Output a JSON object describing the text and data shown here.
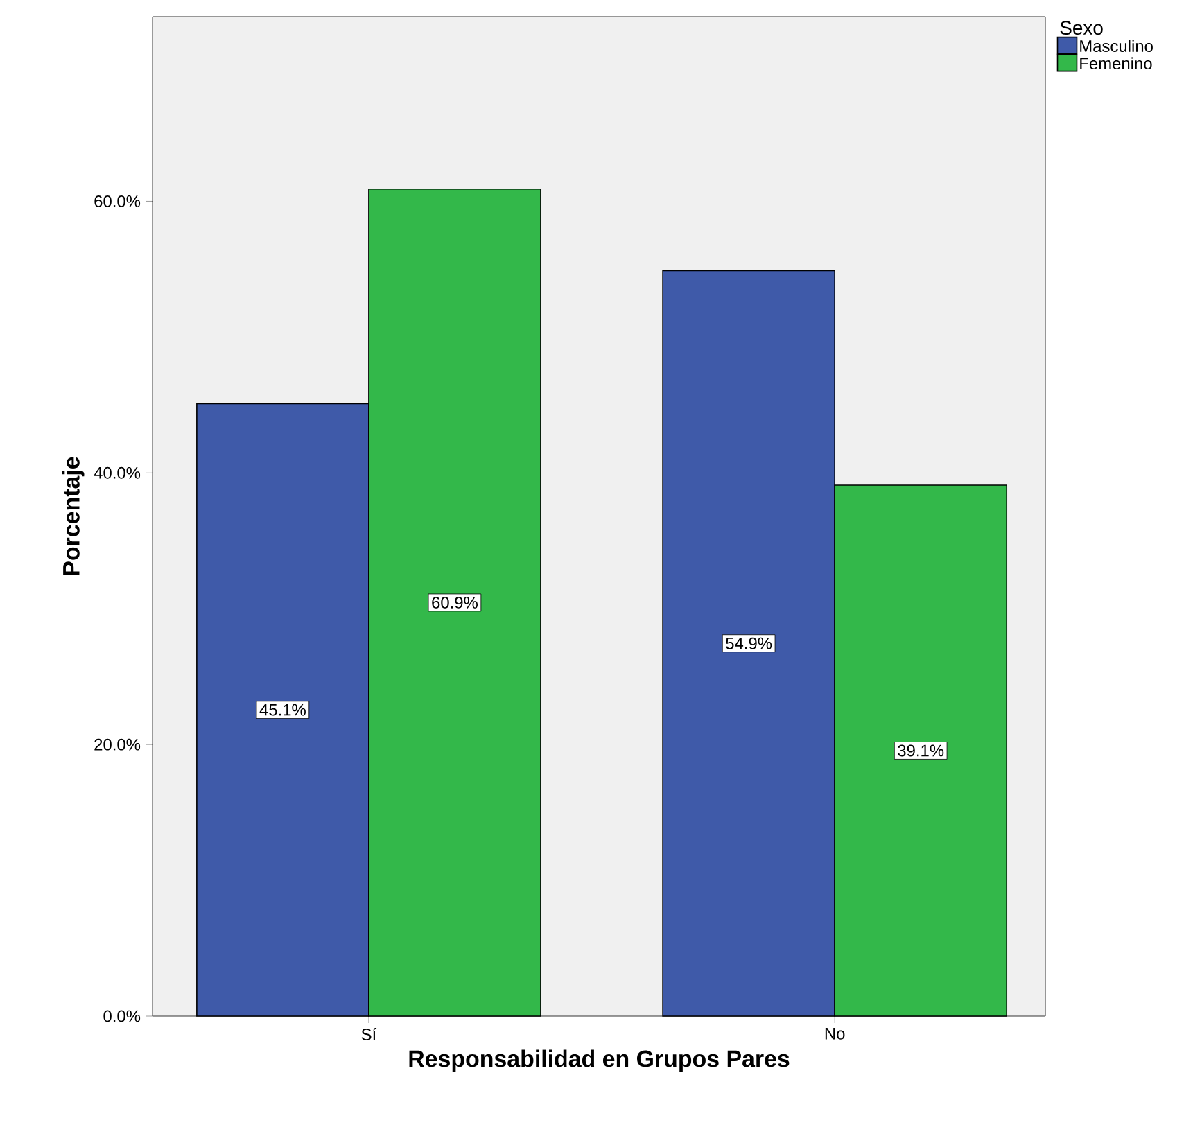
{
  "chart_data": {
    "type": "bar",
    "xlabel": "Responsabilidad en Grupos Pares",
    "ylabel": "Porcentaje",
    "legend_title": "Sexo",
    "categories": [
      "Sí",
      "No"
    ],
    "series": [
      {
        "name": "Masculino",
        "color": "#3f5aa9",
        "values": [
          45.1,
          54.9
        ],
        "value_labels": [
          "45.1%",
          "54.9%"
        ]
      },
      {
        "name": "Femenino",
        "color": "#33b84a",
        "values": [
          60.9,
          39.1
        ],
        "value_labels": [
          "60.9%",
          "39.1%"
        ]
      }
    ],
    "ylim": [
      0,
      73.6
    ],
    "yticks": [
      {
        "value": 0,
        "label": "0.0%"
      },
      {
        "value": 20,
        "label": "20.0%"
      },
      {
        "value": 40,
        "label": "40.0%"
      },
      {
        "value": 60,
        "label": "60.0%"
      }
    ],
    "legend": "right",
    "grid": false
  }
}
